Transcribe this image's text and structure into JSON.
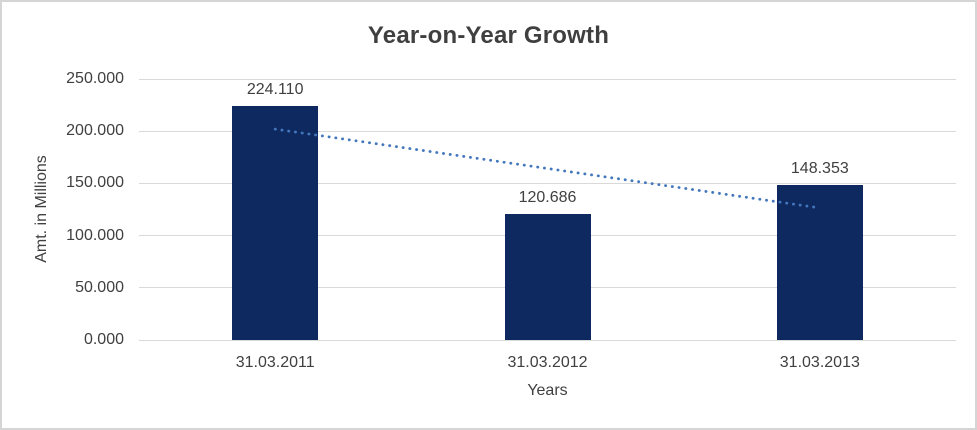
{
  "chart_data": {
    "type": "bar",
    "title": "Year-on-Year Growth",
    "xlabel": "Years",
    "ylabel": "Amt. in Millions",
    "categories": [
      "31.03.2011",
      "31.03.2012",
      "31.03.2013"
    ],
    "values": [
      224.11,
      120.686,
      148.353
    ],
    "data_labels": [
      "224.110",
      "120.686",
      "148.353"
    ],
    "ylim": [
      0,
      250
    ],
    "ytick_step": 50,
    "ytick_labels": [
      "0.000",
      "50.000",
      "100.000",
      "150.000",
      "200.000",
      "250.000"
    ],
    "grid": true,
    "legend_position": "none",
    "trendline": {
      "type": "linear",
      "style": "dotted",
      "start_value": 202,
      "end_value": 126.5,
      "color": "#4377bd"
    },
    "colors": {
      "bar": "#0e2960",
      "gridline": "#d9d9d9",
      "text": "#404040",
      "title_text": "#3f3f3f",
      "background": "#ffffff",
      "border": "#d5d5d5"
    }
  }
}
